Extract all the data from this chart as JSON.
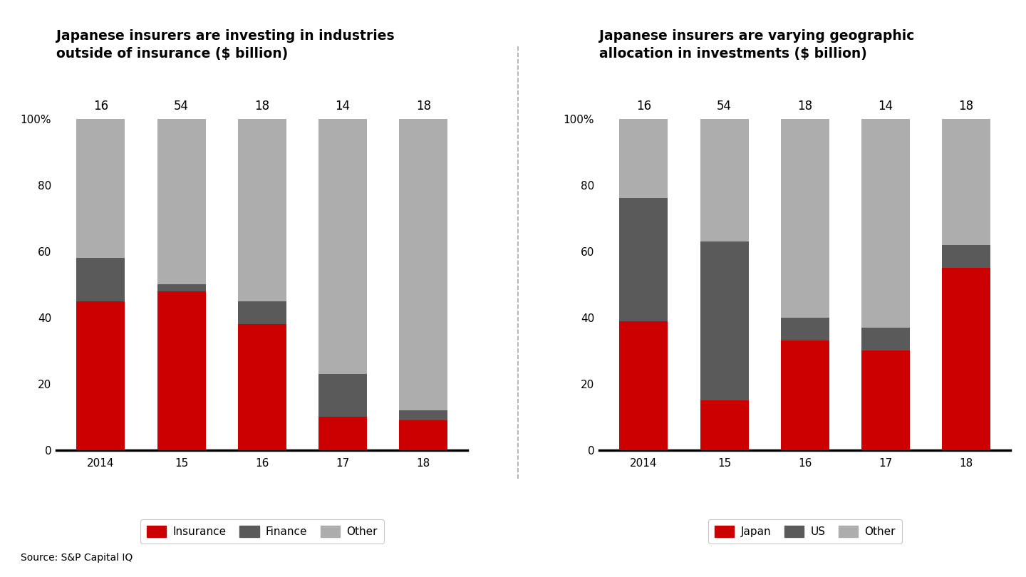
{
  "left_title": "Japanese insurers are investing in industries\noutside of insurance ($ billion)",
  "right_title": "Japanese insurers are varying geographic\nallocation in investments ($ billion)",
  "source": "Source: S&P Capital IQ",
  "categories": [
    "2014",
    "15",
    "16",
    "17",
    "18"
  ],
  "totals": [
    16,
    54,
    18,
    14,
    18
  ],
  "left_series": {
    "Insurance": [
      45,
      48,
      38,
      10,
      9
    ],
    "Finance": [
      13,
      2,
      7,
      13,
      3
    ],
    "Other": [
      42,
      50,
      55,
      77,
      88
    ]
  },
  "right_series": {
    "Japan": [
      39,
      15,
      33,
      30,
      55
    ],
    "US": [
      37,
      48,
      7,
      7,
      7
    ],
    "Other": [
      24,
      37,
      60,
      63,
      38
    ]
  },
  "colors": {
    "red": "#CC0000",
    "dark_gray": "#5A5A5A",
    "light_gray": "#ADADAD"
  },
  "bar_width": 0.6,
  "ylim": [
    0,
    115
  ],
  "yticks": [
    0,
    20,
    40,
    60,
    80,
    100
  ],
  "yticklabels": [
    "0",
    "20",
    "40",
    "60",
    "80",
    "100%"
  ],
  "background_color": "#FFFFFF",
  "divider_color": "#AAAAAA",
  "title_fontsize": 13.5,
  "tick_fontsize": 11,
  "legend_fontsize": 11,
  "total_label_fontsize": 12
}
